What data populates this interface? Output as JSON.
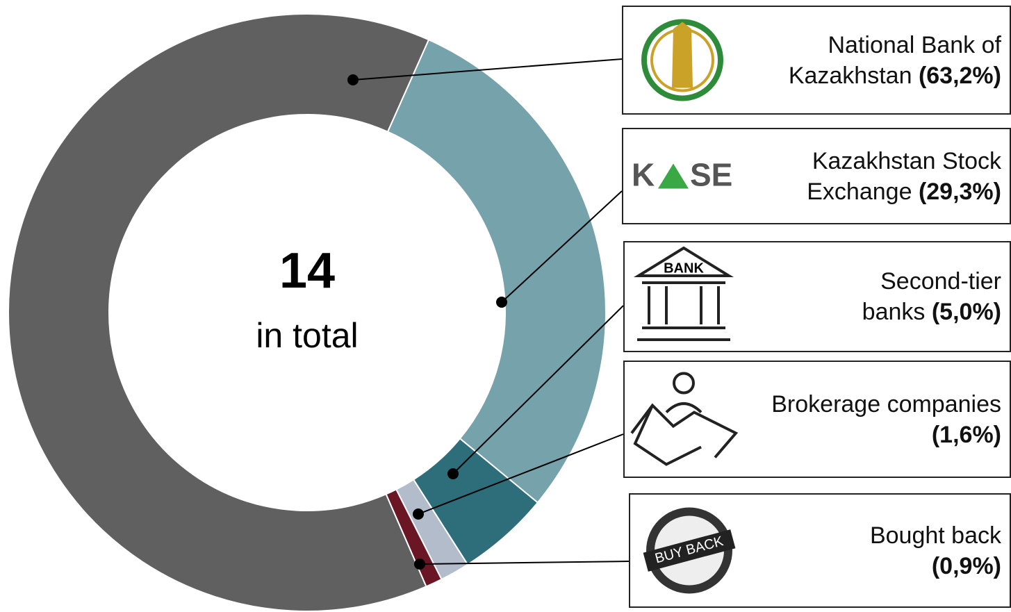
{
  "chart_data": {
    "type": "donut",
    "center_value": 14,
    "center_text": "in total",
    "series": [
      {
        "name": "National Bank of Kazakhstan",
        "color": "#606060",
        "values": [
          63.2
        ],
        "value_labels": [
          "(63,2%)"
        ]
      },
      {
        "name": "Kazakhstan Stock Exchange",
        "color": "#76a2ab",
        "values": [
          29.3
        ],
        "value_labels": [
          "(29,3%)"
        ]
      },
      {
        "name": "Second-tier banks",
        "color": "#2e6e7b",
        "values": [
          5.0
        ],
        "value_labels": [
          "(5,0%)"
        ]
      },
      {
        "name": "Brokerage companies",
        "color": "#b3bccb",
        "values": [
          1.6
        ],
        "value_labels": [
          "(1,6%)"
        ]
      },
      {
        "name": "Bought back",
        "color": "#6b1624",
        "values": [
          0.9
        ],
        "value_labels": [
          "(0,9%)"
        ]
      }
    ],
    "logo_texts": {
      "kase_left": "K",
      "kase_right": "SE",
      "bank": "BANK",
      "buyback": "BUY BACK"
    }
  }
}
